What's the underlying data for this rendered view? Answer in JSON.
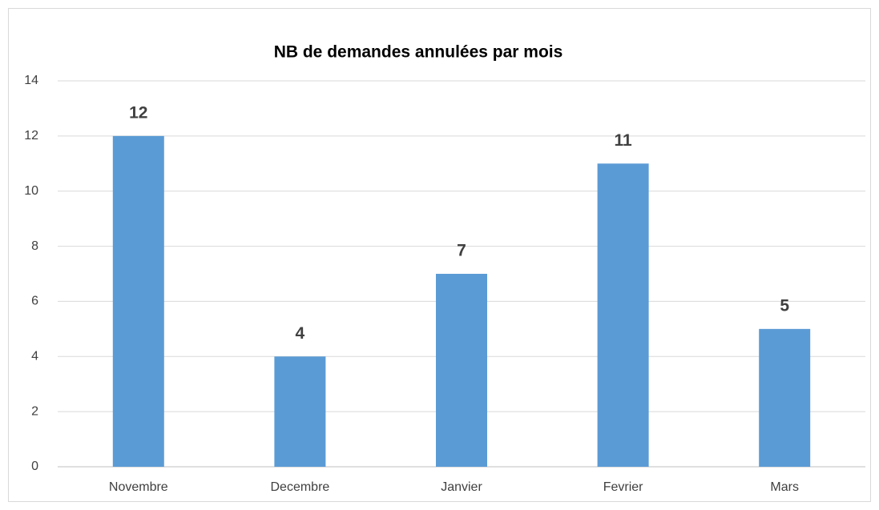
{
  "chart_data": {
    "type": "bar",
    "title": "NB de demandes annulées par mois",
    "categories": [
      "Novembre",
      "Decembre",
      "Janvier",
      "Fevrier",
      "Mars"
    ],
    "values": [
      12,
      4,
      7,
      11,
      5
    ],
    "color": "#5b9bd5",
    "ylim": [
      0,
      14
    ],
    "yticks": [
      0,
      2,
      4,
      6,
      8,
      10,
      12,
      14
    ],
    "grid": true
  }
}
